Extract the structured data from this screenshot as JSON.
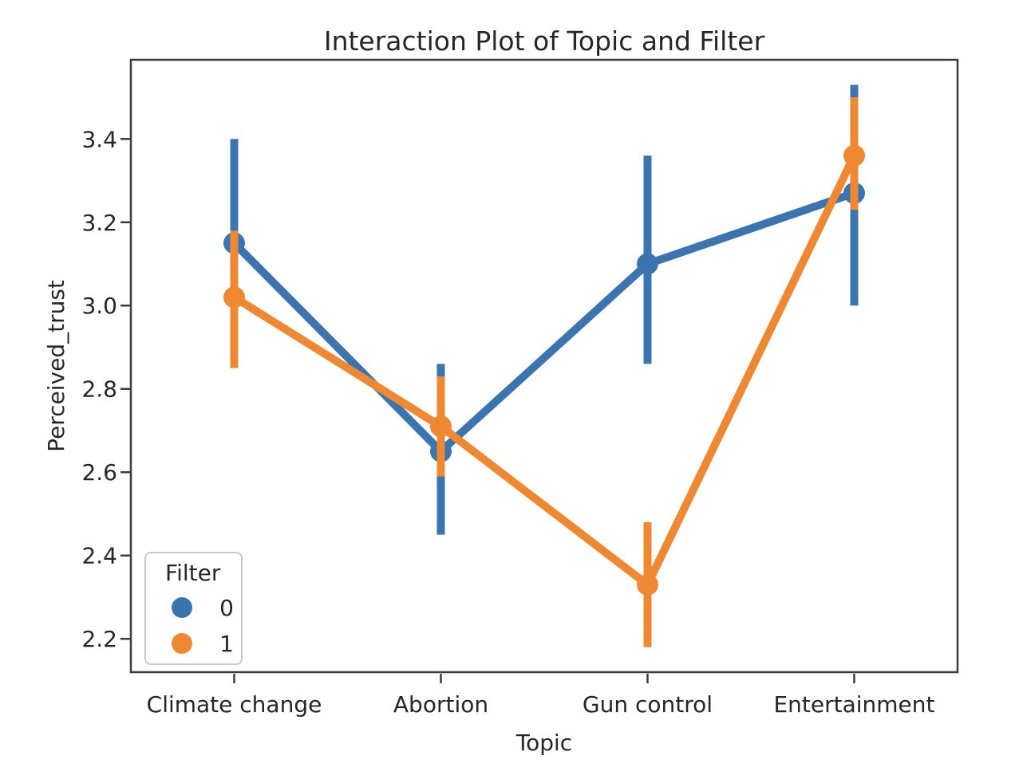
{
  "figure": {
    "background": "#ffffff"
  },
  "colors": {
    "text": "#262626",
    "axis": "#3c3c3c",
    "legend_border": "#c9c9c9",
    "filter0": "#3b75af",
    "filter1": "#ee8833"
  },
  "chart_data": {
    "type": "line",
    "title": "Interaction Plot of Topic and Filter",
    "xlabel": "Topic",
    "ylabel": "Perceived_trust",
    "categories": [
      "Climate change",
      "Abortion",
      "Gun control",
      "Entertainment"
    ],
    "yticks": [
      2.2,
      2.4,
      2.6,
      2.8,
      3.0,
      3.2,
      3.4
    ],
    "ylim": [
      2.12,
      3.59
    ],
    "grid": false,
    "legend": {
      "title": "Filter",
      "position": "lower-left",
      "entries": [
        {
          "label": "0",
          "color": "#3b75af"
        },
        {
          "label": "1",
          "color": "#ee8833"
        }
      ]
    },
    "series": [
      {
        "name": "0",
        "color": "#3b75af",
        "values": [
          3.15,
          2.65,
          3.1,
          3.27
        ],
        "ci_low": [
          2.9,
          2.45,
          2.86,
          3.0
        ],
        "ci_high": [
          3.4,
          2.86,
          3.36,
          3.53
        ]
      },
      {
        "name": "1",
        "color": "#ee8833",
        "values": [
          3.02,
          2.71,
          2.33,
          3.36
        ],
        "ci_low": [
          2.85,
          2.59,
          2.18,
          3.23
        ],
        "ci_high": [
          3.18,
          2.83,
          2.48,
          3.5
        ]
      }
    ]
  }
}
